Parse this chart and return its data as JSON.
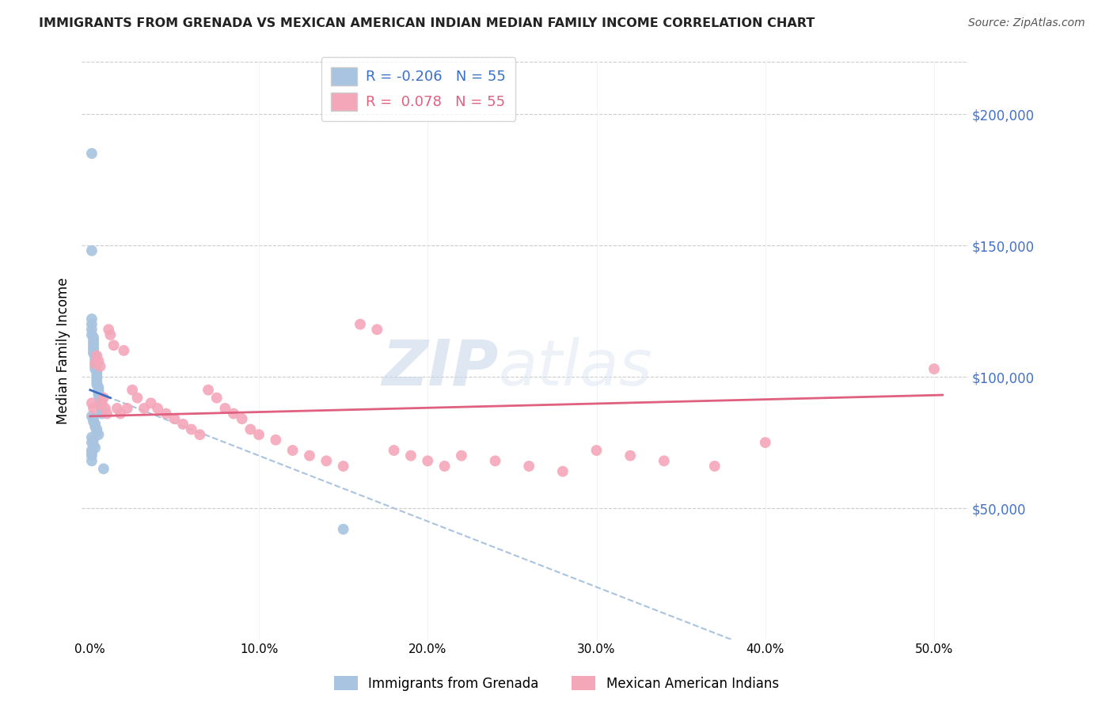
{
  "title": "IMMIGRANTS FROM GRENADA VS MEXICAN AMERICAN INDIAN MEDIAN FAMILY INCOME CORRELATION CHART",
  "source": "Source: ZipAtlas.com",
  "ylabel": "Median Family Income",
  "xlabel_ticks": [
    "0.0%",
    "10.0%",
    "20.0%",
    "30.0%",
    "40.0%",
    "50.0%"
  ],
  "xlabel_vals": [
    0.0,
    0.1,
    0.2,
    0.3,
    0.4,
    0.5
  ],
  "ytick_labels": [
    "$50,000",
    "$100,000",
    "$150,000",
    "$200,000"
  ],
  "ytick_vals": [
    50000,
    100000,
    150000,
    200000
  ],
  "ylim": [
    0,
    220000
  ],
  "xlim": [
    -0.005,
    0.52
  ],
  "R_blue": -0.206,
  "N_blue": 55,
  "R_pink": 0.078,
  "N_pink": 55,
  "blue_color": "#a8c4e0",
  "pink_color": "#f4a7b9",
  "blue_line_color": "#3a6fc4",
  "pink_line_color": "#e06080",
  "blue_dashed_color": "#a8c4e0",
  "watermark_zip": "ZIP",
  "watermark_atlas": "atlas",
  "blue_x": [
    0.001,
    0.001,
    0.001,
    0.001,
    0.001,
    0.001,
    0.002,
    0.002,
    0.002,
    0.002,
    0.002,
    0.002,
    0.002,
    0.003,
    0.003,
    0.003,
    0.003,
    0.003,
    0.003,
    0.004,
    0.004,
    0.004,
    0.004,
    0.004,
    0.004,
    0.005,
    0.005,
    0.005,
    0.005,
    0.006,
    0.006,
    0.006,
    0.006,
    0.007,
    0.007,
    0.007,
    0.001,
    0.002,
    0.002,
    0.003,
    0.003,
    0.004,
    0.004,
    0.005,
    0.001,
    0.002,
    0.001,
    0.002,
    0.003,
    0.001,
    0.001,
    0.001,
    0.001,
    0.008,
    0.15
  ],
  "blue_y": [
    185000,
    148000,
    122000,
    120000,
    118000,
    116000,
    115000,
    114000,
    113000,
    112000,
    111000,
    110000,
    109000,
    108000,
    107000,
    106000,
    105000,
    104000,
    103000,
    102000,
    101000,
    100000,
    99000,
    98000,
    97000,
    96000,
    95000,
    94000,
    93000,
    92000,
    91000,
    90000,
    89000,
    88000,
    87000,
    86000,
    85000,
    84000,
    83000,
    82000,
    81000,
    80000,
    79000,
    78000,
    77000,
    76000,
    75000,
    74000,
    73000,
    72000,
    71000,
    70000,
    68000,
    65000,
    42000
  ],
  "pink_x": [
    0.001,
    0.002,
    0.003,
    0.004,
    0.005,
    0.006,
    0.007,
    0.008,
    0.009,
    0.01,
    0.011,
    0.012,
    0.014,
    0.016,
    0.018,
    0.02,
    0.022,
    0.025,
    0.028,
    0.032,
    0.036,
    0.04,
    0.045,
    0.05,
    0.055,
    0.06,
    0.065,
    0.07,
    0.075,
    0.08,
    0.085,
    0.09,
    0.095,
    0.1,
    0.11,
    0.12,
    0.13,
    0.14,
    0.15,
    0.16,
    0.17,
    0.18,
    0.19,
    0.2,
    0.21,
    0.22,
    0.24,
    0.26,
    0.28,
    0.3,
    0.32,
    0.34,
    0.37,
    0.4,
    0.5
  ],
  "pink_y": [
    90000,
    88000,
    105000,
    108000,
    106000,
    104000,
    90000,
    92000,
    88000,
    86000,
    118000,
    116000,
    112000,
    88000,
    86000,
    110000,
    88000,
    95000,
    92000,
    88000,
    90000,
    88000,
    86000,
    84000,
    82000,
    80000,
    78000,
    95000,
    92000,
    88000,
    86000,
    84000,
    80000,
    78000,
    76000,
    72000,
    70000,
    68000,
    66000,
    120000,
    118000,
    72000,
    70000,
    68000,
    66000,
    70000,
    68000,
    66000,
    64000,
    72000,
    70000,
    68000,
    66000,
    75000,
    103000
  ]
}
